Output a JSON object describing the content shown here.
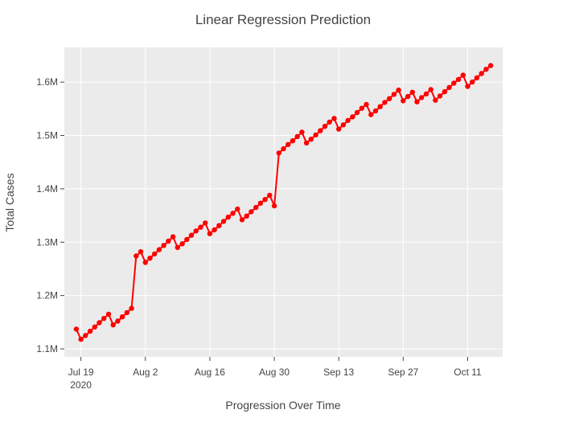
{
  "chart_data": {
    "type": "line",
    "title": "Linear Regression Prediction",
    "xlabel": "Progression Over Time",
    "ylabel": "Total Cases",
    "x_start": "2020-07-18",
    "x_range_days": [
      -2.6,
      92.6
    ],
    "ylim": [
      1085000,
      1665000
    ],
    "grid": true,
    "x_ticks": [
      {
        "day": 1,
        "label": "Jul 19",
        "sublabel": "2020"
      },
      {
        "day": 15,
        "label": "Aug 2",
        "sublabel": ""
      },
      {
        "day": 29,
        "label": "Aug 16",
        "sublabel": ""
      },
      {
        "day": 43,
        "label": "Aug 30",
        "sublabel": ""
      },
      {
        "day": 57,
        "label": "Sep 13",
        "sublabel": ""
      },
      {
        "day": 71,
        "label": "Sep 27",
        "sublabel": ""
      },
      {
        "day": 85,
        "label": "Oct 11",
        "sublabel": ""
      }
    ],
    "y_ticks": [
      {
        "value": 1100000,
        "label": "1.1M"
      },
      {
        "value": 1200000,
        "label": "1.2M"
      },
      {
        "value": 1300000,
        "label": "1.3M"
      },
      {
        "value": 1400000,
        "label": "1.4M"
      },
      {
        "value": 1500000,
        "label": "1.5M"
      },
      {
        "value": 1600000,
        "label": "1.6M"
      }
    ],
    "series": [
      {
        "name": "Total Cases",
        "color": "#ff0000",
        "x_days": [
          0,
          1,
          2,
          3,
          4,
          5,
          6,
          7,
          8,
          9,
          10,
          11,
          12,
          13,
          14,
          15,
          16,
          17,
          18,
          19,
          20,
          21,
          22,
          23,
          24,
          25,
          26,
          27,
          28,
          29,
          30,
          31,
          32,
          33,
          34,
          35,
          36,
          37,
          38,
          39,
          40,
          41,
          42,
          43,
          44,
          45,
          46,
          47,
          48,
          49,
          50,
          51,
          52,
          53,
          54,
          55,
          56,
          57,
          58,
          59,
          60,
          61,
          62,
          63,
          64,
          65,
          66,
          67,
          68,
          69,
          70,
          71,
          72,
          73,
          74,
          75,
          76,
          77,
          78,
          79,
          80,
          81,
          82,
          83,
          84,
          85,
          86,
          87,
          88,
          89,
          90
        ],
        "values": [
          1137000,
          1118000,
          1125000,
          1133000,
          1141000,
          1149000,
          1157000,
          1165000,
          1145000,
          1152000,
          1160000,
          1168000,
          1176000,
          1274000,
          1282000,
          1262000,
          1270000,
          1278000,
          1286000,
          1294000,
          1302000,
          1310000,
          1290000,
          1297000,
          1305000,
          1313000,
          1321000,
          1328000,
          1336000,
          1316000,
          1323000,
          1331000,
          1339000,
          1347000,
          1354000,
          1362000,
          1342000,
          1349000,
          1357000,
          1365000,
          1373000,
          1380000,
          1388000,
          1368000,
          1467000,
          1475000,
          1483000,
          1490000,
          1498000,
          1506000,
          1486000,
          1493000,
          1501000,
          1509000,
          1517000,
          1525000,
          1532000,
          1512000,
          1520000,
          1528000,
          1535000,
          1543000,
          1551000,
          1558000,
          1539000,
          1546000,
          1554000,
          1562000,
          1569000,
          1577000,
          1585000,
          1565000,
          1573000,
          1581000,
          1563000,
          1571000,
          1578000,
          1586000,
          1566000,
          1574000,
          1582000,
          1590000,
          1598000,
          1605000,
          1613000,
          1592000,
          1600000,
          1608000,
          1616000,
          1624000,
          1631000
        ]
      }
    ]
  }
}
